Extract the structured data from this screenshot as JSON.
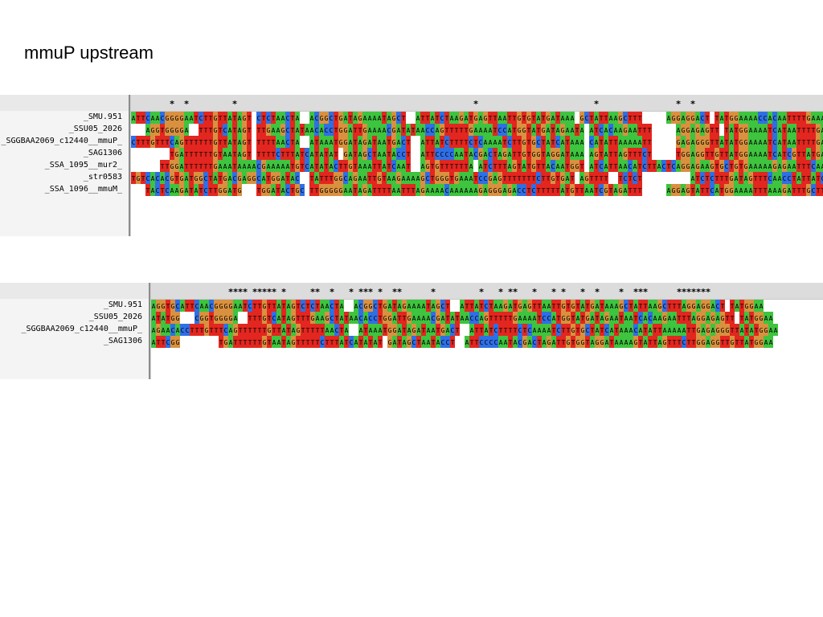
{
  "slide": {
    "title": "mmuP upstream"
  },
  "panels": [
    {
      "id": "alignment-panel-1",
      "names": [
        "_SMU.951",
        "_SSU05_2026",
        "_SGGBAA2069_c12440__mmuP_",
        "_SAG1306",
        "_SSA_1095__mur2_",
        "_str0583",
        "_SSA_1096__mmuM_"
      ],
      "conservation": "        *  *         *                                                 *                        *                *  *                ",
      "sequences": [
        "ATTCAACGGGGAATCTTGTTATAGT-CTCTAACTA--ACGGCTGATAGAAAATAGCT--ATTATCTAAGATGAGTTAATTGTGTATGATAAA-GCTATTAAGCTTT-----AGGAGGACT-TATGGAAAACCACAATTTTGAAAAT",
        "---AGGTGGGGA--TTTGTCATAGT-TTGAAGCTATAACACCTGGATTGAAAACGATATAACCAGTTTTTGAAAATCCATGGTATGATAGAATA-ATCACAAGAATTT-----AGGAGAGTT-TATGGAAAATCATAATTTTGAAAAT",
        "CTTTGTTTCAGTTTTTTGTTATAGT-TTTTAACTA--ATAAATGGATAGATAATGACT--ATTATCTTTTCTCAAAATCTTGTGCTATCATAAA-CATATTAAAAATT-----GAGAGGGTTATATGGAAAATCATAATTTTGAAAAC",
        "--------TGATTTTTTGTAATAGT-TTTTCTTTATCATATAT-GATAGCTAATACCT--ATTCCCCAATACGACTAGATTGTGGTAGGATAAA-AGTATTAGTTTCT-----TGGAGGTTGTTATGGAAAATCATCGTTATGAAGAT",
        "------TTGGATTTTTTGAAATAAAACGAAAAATGTCATATACTTGTAAATTATCAAT--AGTGTTTTTTA-ATCTTTAGTATGTTACAATGGT-ATCATTAACATCTTACTCAGGAGAAGTGCTGTGAAAAAGAGAATTTCAAAAA-",
        "TGTCACACGTGATGGCTATGACGAGGCATGGATAC--TATTTGGCAGAATTGTAAGAAAAGCTGGGTGAAATCCGAGTTTTTTTCTTGTGAT-AGTTTT--TCTCT----------ATCTCTTTGATAGTTTCAACCTATTATCC",
        "---TACTCAAGATATCTTGGATG---TGGATACTGC-TTGGGGGAATAGATTTTAATTTAGAAAACAAAAAAGAGGGAGACCTCTTTTTATGTTAATCGTAGATTT-----AGGAGTATTCATGGAAAATTTAAAGATTTGCTT"
      ]
    },
    {
      "id": "alignment-panel-2",
      "names": [
        "_SMU.951",
        "_SSU05_2026",
        "_SGGBAA2069_c12440__mmuP_",
        "_SAG1306"
      ],
      "conservation": "                **** ***** *     **  *   * *** *  **      *         *   * **   *   * *   *  *    *  ***      *******",
      "sequences": [
        "AGGTGCATTCAACGGGGAATCTTGTTATAGTCTCTAACTA--ACGGCTGATAGAAAATAGCT--ATTATCTAAGATGAGTTAATTGTGTATGATAAAGCTATTAAGCTTTAGGAGGACT-TATGGAA",
        "ATATGG---CGGTGGGGA--TTTGTCATAGTTTGAAGCTATAACACCTGGATTGAAAACGATATAACCAGTTTTTGAAAATCCATGGTATGATAGAATAATCACAAGAATTTAGGAGAGTT-TATGGAA",
        "AGAACACCTTTGTTTCAGTTTTTTGTTATAGTTTTTAACTA--ATAAATGGATAGATAATGACT--ATTATCTTTTCTCAAAATCTTGTGCTATCATAAACATATTAAAAATTGAGAGGGTTATATGGAA",
        "ATTCGG--------TGATTTTTTGTAATAGTTTTTCTTTATCATATAT-GATAGCTAATACCT--ATTCCCCAATACGACTAGATTGTGGTAGGATAAAAGTATTAGTTTCTTGGAGGTTGTTATGGAA"
      ]
    }
  ],
  "base_colors": {
    "A": "#3ec43e",
    "T": "#e3261f",
    "G": "#d9913f",
    "C": "#2f6fe6",
    "-": "#ffffff"
  }
}
